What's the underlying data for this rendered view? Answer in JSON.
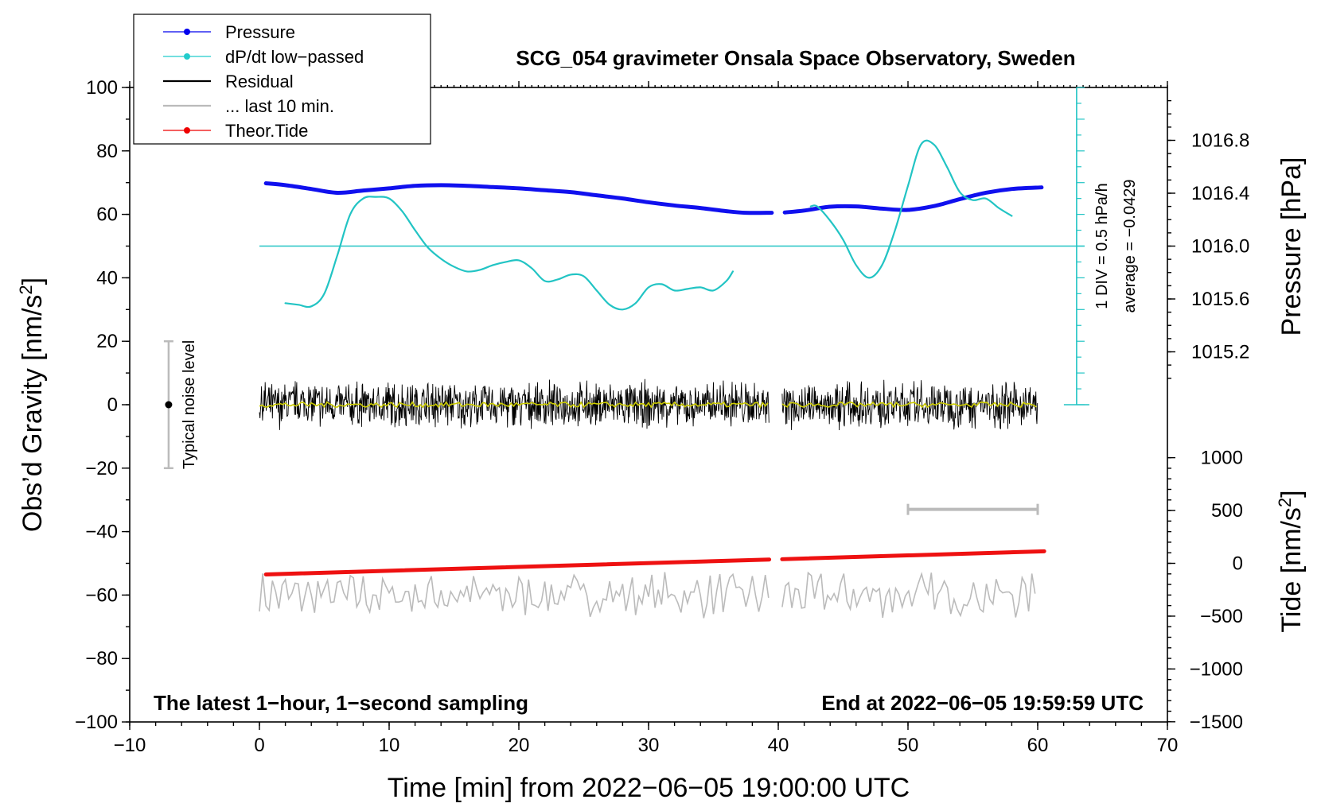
{
  "chart_data": {
    "type": "line",
    "title": "SCG_054 gravimeter Onsala Space Observatory, Sweden",
    "xlabel": "Time [min] from 2022−06−05 19:00:00 UTC",
    "ylabel_main": "Obs’d Gravity [nm/s",
    "ylabel_sup": "2",
    "ylabel_close": "]",
    "xlim": [
      -10,
      70
    ],
    "ylim": [
      -100,
      100
    ],
    "xticks": [
      -10,
      0,
      10,
      20,
      30,
      40,
      50,
      60,
      70
    ],
    "xtick_labels": [
      "−10",
      "0",
      "10",
      "20",
      "30",
      "40",
      "50",
      "60",
      "70"
    ],
    "yticks": [
      100,
      80,
      60,
      40,
      20,
      0,
      -20,
      -40,
      -60,
      -80,
      -100
    ],
    "ytick_labels": [
      "100",
      "80",
      "60",
      "40",
      "20",
      "0",
      "−20",
      "−40",
      "−60",
      "−80",
      "−100"
    ],
    "pressure_axis": {
      "label": "Pressure [hPa]",
      "ticks": [
        1016.8,
        1016.4,
        1016.0,
        1015.6,
        1015.2
      ],
      "tick_labels": [
        "1016.8",
        "1016.4",
        "1016.0",
        "1015.6",
        "1015.2"
      ],
      "range_gravity": [
        50,
        100
      ],
      "range_hpa": [
        1016.0,
        1017.2
      ]
    },
    "tide_axis": {
      "label_main": "Tide [nm/s",
      "label_sup": "2",
      "label_close": "]",
      "ticks": [
        1000,
        500,
        0,
        -500,
        -1000,
        -1500
      ],
      "tick_labels": [
        "1000",
        "500",
        "0",
        "−500",
        "−1000",
        "−1500"
      ],
      "gravity_at_0": -50,
      "gravity_per_unit": 0.0333
    },
    "dpdt_scale": {
      "div_label": "1 DIV = 0.5 hPa/h",
      "avg_label": "average = −0.0429",
      "x": 63,
      "y_range": [
        0,
        100
      ],
      "baseline_y": 50
    },
    "noise_bar": {
      "label": "Typical noise level",
      "x": -7,
      "y_center": 0,
      "y_range": [
        -20,
        20
      ]
    },
    "window_bar": {
      "x_range": [
        50,
        60
      ],
      "y": -33
    },
    "annotation_left": "The latest 1−hour, 1−second sampling",
    "annotation_right": "End at 2022−06−05 19:59:59 UTC",
    "legend": [
      {
        "label": "Pressure",
        "color": "#0000ee",
        "style": "line-dot"
      },
      {
        "label": "dP/dt low−passed",
        "color": "#22cccc",
        "style": "line-dot"
      },
      {
        "label": "Residual",
        "color": "#000000",
        "style": "line"
      },
      {
        "label": "... last 10 min.",
        "color": "#bbbbbb",
        "style": "line"
      },
      {
        "label": "Theor.Tide",
        "color": "#ee0000",
        "style": "line-dot"
      }
    ],
    "series": [
      {
        "name": "Pressure",
        "color": "#1010ee",
        "segments": [
          {
            "x": [
              0.5,
              2,
              4,
              6,
              8,
              10,
              12,
              14,
              16,
              18,
              20,
              22,
              24,
              26,
              28,
              30,
              32,
              34,
              36,
              37.5,
              39.5
            ],
            "y": [
              69.8,
              69.2,
              68.0,
              66.8,
              67.5,
              68.2,
              69.0,
              69.2,
              69.0,
              68.6,
              68.2,
              67.6,
              67.0,
              66.0,
              65.0,
              63.8,
              62.8,
              62.0,
              61.0,
              60.5,
              60.5
            ]
          },
          {
            "x": [
              40.5,
              42,
              44,
              46,
              48,
              50,
              52,
              54,
              56,
              58,
              60.3
            ],
            "y": [
              60.6,
              61.2,
              62.4,
              62.5,
              61.8,
              61.4,
              62.6,
              64.8,
              66.8,
              68.0,
              68.5
            ]
          }
        ]
      },
      {
        "name": "dP/dt low−passed",
        "color": "#22c4c4",
        "segments": [
          {
            "x": [
              2,
              3,
              4,
              5,
              6,
              7,
              8,
              9,
              10,
              11,
              12,
              13,
              14,
              15,
              16,
              17,
              18,
              19,
              20,
              21,
              22,
              23,
              24,
              25,
              26,
              27,
              28,
              29,
              30,
              31,
              32,
              33,
              34,
              35,
              36,
              36.5
            ],
            "y": [
              32,
              31.5,
              31,
              35,
              47,
              60,
              65,
              65.5,
              65,
              61,
              55,
              49.5,
              46,
              43.5,
              42,
              42.5,
              44,
              45,
              45.5,
              43,
              39,
              39.5,
              41,
              40.5,
              36,
              31.5,
              30,
              32,
              37,
              38,
              36,
              36.5,
              37,
              36,
              39,
              42
            ]
          },
          {
            "x": [
              42.5,
              43,
              44,
              45,
              46,
              47,
              48,
              49,
              50,
              51,
              52,
              53,
              54,
              55,
              56,
              57,
              58
            ],
            "y": [
              62.5,
              62.5,
              58,
              52,
              44,
              40,
              44,
              55,
              69,
              82,
              82,
              75,
              67,
              64.5,
              65,
              62,
              59.5
            ]
          }
        ]
      },
      {
        "name": "Theor.Tide",
        "color": "#ee1111",
        "segments": [
          {
            "x": [
              0.5,
              39.3
            ],
            "y": [
              -53.5,
              -48.8
            ]
          },
          {
            "x": [
              40.3,
              60.5
            ],
            "y": [
              -48.7,
              -46.2
            ]
          }
        ]
      }
    ],
    "residual": {
      "segments": [
        [
          0,
          39.3
        ],
        [
          40.3,
          60
        ]
      ],
      "y_center": 0,
      "amplitude": 7,
      "smoothed_color": "#cccc00"
    },
    "last_10_min": {
      "segments": [
        [
          0,
          39.3
        ],
        [
          40.3,
          60
        ]
      ],
      "y_center": -60,
      "amplitude": 8,
      "color": "#bbbbbb"
    }
  }
}
